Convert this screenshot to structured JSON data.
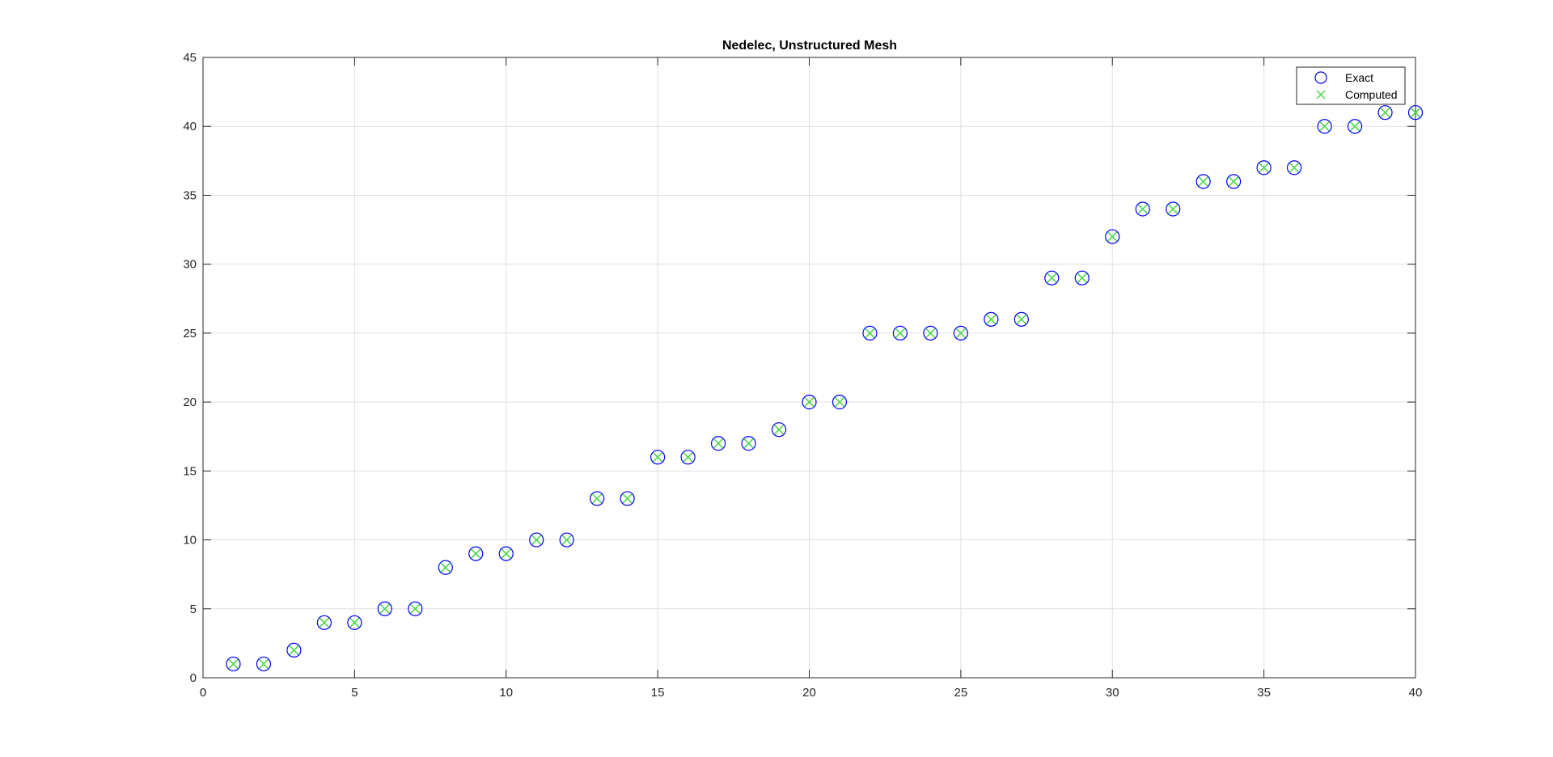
{
  "chart_data": {
    "type": "scatter",
    "title": "Nedelec, Unstructured Mesh",
    "xlabel": "",
    "ylabel": "",
    "xlim": [
      0,
      40
    ],
    "ylim": [
      0,
      45
    ],
    "xticks": [
      0,
      5,
      10,
      15,
      20,
      25,
      30,
      35,
      40
    ],
    "yticks": [
      0,
      5,
      10,
      15,
      20,
      25,
      30,
      35,
      40,
      45
    ],
    "grid": true,
    "legend_position": "top-right",
    "x": [
      1,
      2,
      3,
      4,
      5,
      6,
      7,
      8,
      9,
      10,
      11,
      12,
      13,
      14,
      15,
      16,
      17,
      18,
      19,
      20,
      21,
      22,
      23,
      24,
      25,
      26,
      27,
      28,
      29,
      30,
      31,
      32,
      33,
      34,
      35,
      36,
      37,
      38,
      39,
      40
    ],
    "series": [
      {
        "name": "Exact",
        "marker": "circle",
        "color": "#0000ff",
        "values": [
          1,
          1,
          2,
          4,
          4,
          5,
          5,
          8,
          9,
          9,
          10,
          10,
          13,
          13,
          16,
          16,
          17,
          17,
          18,
          20,
          20,
          25,
          25,
          25,
          25,
          26,
          26,
          29,
          29,
          32,
          34,
          34,
          36,
          36,
          37,
          37,
          40,
          40,
          41,
          41
        ]
      },
      {
        "name": "Computed",
        "marker": "x",
        "color": "#4cd94c",
        "values": [
          1,
          1,
          2,
          4,
          4,
          5,
          5,
          8,
          9,
          9,
          10,
          10,
          13,
          13,
          16,
          16,
          17,
          17,
          18,
          20,
          20,
          25,
          25,
          25,
          25,
          26,
          26,
          29,
          29,
          32,
          34,
          34,
          36,
          36,
          37,
          37,
          40,
          40,
          41,
          41
        ]
      }
    ]
  }
}
